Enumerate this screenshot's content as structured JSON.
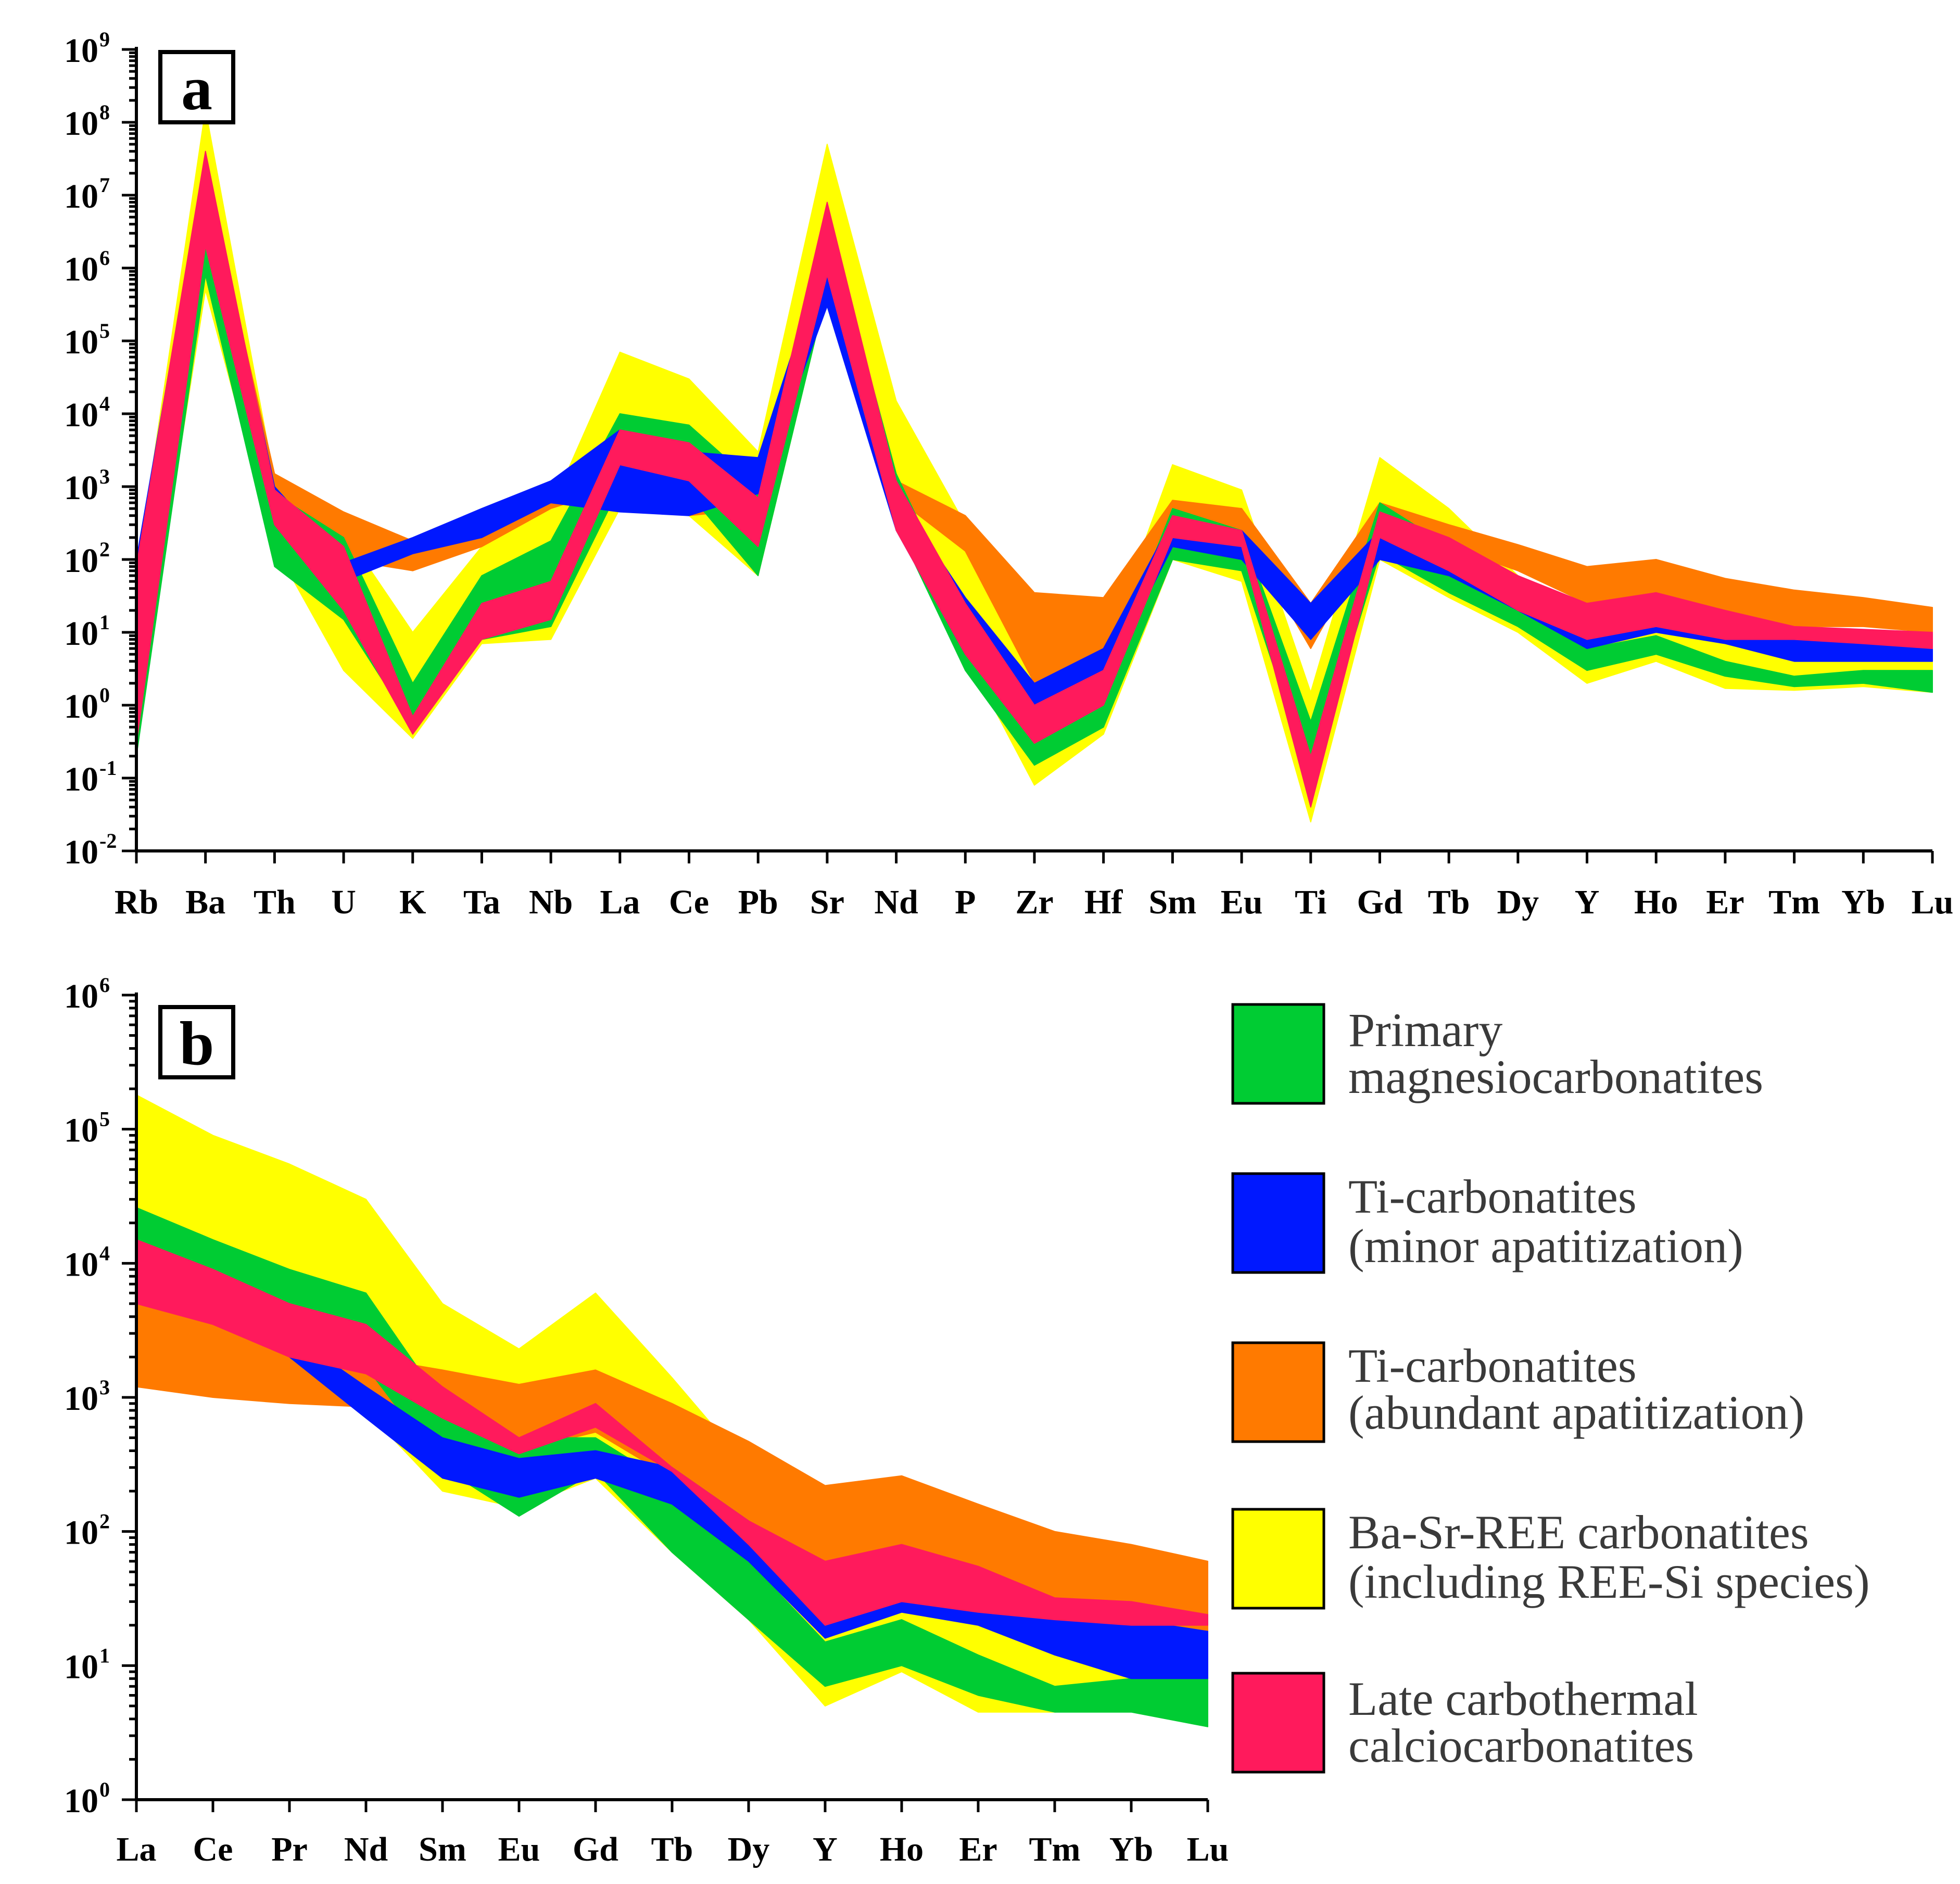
{
  "chart_data": [
    {
      "panel": "a",
      "type": "area",
      "yscale": "log",
      "ylim": [
        0.01,
        1000000000
      ],
      "categories": [
        "Rb",
        "Ba",
        "Th",
        "U",
        "K",
        "Ta",
        "Nb",
        "La",
        "Ce",
        "Pb",
        "Sr",
        "Nd",
        "P",
        "Zr",
        "Hf",
        "Sm",
        "Eu",
        "Ti",
        "Gd",
        "Tb",
        "Dy",
        "Y",
        "Ho",
        "Er",
        "Tm",
        "Yb",
        "Lu"
      ],
      "yticks": [
        {
          "base": "10",
          "exp": "-2",
          "value": 0.01
        },
        {
          "base": "10",
          "exp": "-1",
          "value": 0.1
        },
        {
          "base": "10",
          "exp": "0",
          "value": 1
        },
        {
          "base": "10",
          "exp": "1",
          "value": 10
        },
        {
          "base": "10",
          "exp": "2",
          "value": 100
        },
        {
          "base": "10",
          "exp": "3",
          "value": 1000
        },
        {
          "base": "10",
          "exp": "4",
          "value": 10000
        },
        {
          "base": "10",
          "exp": "5",
          "value": 100000
        },
        {
          "base": "10",
          "exp": "6",
          "value": 1000000
        },
        {
          "base": "10",
          "exp": "7",
          "value": 10000000
        },
        {
          "base": "10",
          "exp": "8",
          "value": 100000000
        },
        {
          "base": "10",
          "exp": "9",
          "value": 1000000000
        }
      ],
      "series": [
        {
          "name": "Ba-Sr-REE carbonatites (including REE-Si species)",
          "color": "#ffff00",
          "lower": [
            0.5,
            500000,
            150,
            3,
            0.35,
            7,
            8,
            500,
            400,
            60,
            500000,
            300,
            5,
            0.08,
            0.4,
            100,
            50,
            0.025,
            100,
            30,
            10,
            2,
            4,
            1.7,
            1.6,
            1.8,
            1.5
          ],
          "upper": [
            60,
            150000000,
            1200,
            250,
            10,
            150,
            500,
            70000,
            30000,
            3000,
            50000000,
            15000,
            300,
            3,
            5,
            2000,
            900,
            1.5,
            2500,
            500,
            60,
            10,
            20,
            8,
            5,
            5,
            4
          ]
        },
        {
          "name": "Ti-carbonatites (abundant apatitization)",
          "color": "#ff7a00",
          "lower": [
            40,
            8000000,
            400,
            100,
            70,
            150,
            500,
            1000,
            400,
            500,
            1000000,
            700,
            130,
            2,
            5,
            300,
            250,
            6,
            300,
            150,
            70,
            25,
            35,
            20,
            12,
            12,
            10
          ],
          "upper": [
            80,
            20000000,
            1500,
            450,
            180,
            200,
            900,
            4000,
            2000,
            1200,
            3000000,
            1200,
            400,
            35,
            30,
            650,
            500,
            25,
            600,
            300,
            160,
            80,
            100,
            55,
            38,
            30,
            22
          ]
        },
        {
          "name": "Primary magnesiocarbonatites",
          "color": "#00cc33",
          "lower": [
            0.2,
            800000,
            80,
            15,
            0.5,
            8,
            12,
            1000,
            800,
            60,
            500000,
            300,
            3,
            0.15,
            0.5,
            100,
            70,
            0.1,
            120,
            35,
            12,
            3,
            5,
            2.5,
            1.8,
            2,
            1.5
          ],
          "upper": [
            60,
            30000000,
            800,
            200,
            2,
            60,
            180,
            10000,
            7000,
            1000,
            5000000,
            1500,
            15,
            0.6,
            2,
            500,
            250,
            0.6,
            600,
            150,
            30,
            6,
            9,
            4,
            2.5,
            3,
            3
          ]
        },
        {
          "name": "Ti-carbonatites (minor apatitization)",
          "color": "#0018ff",
          "lower": [
            40,
            5000000,
            400,
            50,
            120,
            200,
            600,
            450,
            400,
            800,
            300000,
            250,
            5,
            0.8,
            2,
            150,
            100,
            8,
            100,
            60,
            20,
            6,
            10,
            7,
            4,
            4,
            4
          ]
        },
        {
          "name": "Ti-carbonatites (minor apatitization) upper",
          "color": "#0018ff",
          "upper": [
            100,
            30000000,
            1000,
            90,
            200,
            500,
            1200,
            6000,
            3000,
            2500,
            2000000,
            800,
            30,
            2,
            6,
            350,
            250,
            25,
            250,
            140,
            60,
            18,
            25,
            14,
            10,
            9,
            8
          ]
        },
        {
          "name": "Late carbothermal calciocarbonatites",
          "color": "#ff1a5c",
          "lower": [
            0.3,
            2000000,
            300,
            20,
            0.4,
            8,
            15,
            2000,
            1200,
            150,
            800000,
            250,
            5,
            0.3,
            1,
            200,
            150,
            0.04,
            200,
            70,
            20,
            8,
            12,
            8,
            8,
            7,
            6
          ],
          "upper": [
            80,
            40000000,
            900,
            150,
            0.7,
            25,
            50,
            6000,
            4000,
            700,
            8000000,
            1200,
            25,
            1,
            3,
            400,
            250,
            0.2,
            450,
            200,
            60,
            25,
            35,
            20,
            12,
            11,
            10
          ]
        }
      ]
    },
    {
      "panel": "b",
      "type": "area",
      "yscale": "log",
      "ylim": [
        1,
        1000000
      ],
      "categories": [
        "La",
        "Ce",
        "Pr",
        "Nd",
        "Sm",
        "Eu",
        "Gd",
        "Tb",
        "Dy",
        "Y",
        "Ho",
        "Er",
        "Tm",
        "Yb",
        "Lu"
      ],
      "yticks": [
        {
          "base": "10",
          "exp": "0",
          "value": 1
        },
        {
          "base": "10",
          "exp": "1",
          "value": 10
        },
        {
          "base": "10",
          "exp": "2",
          "value": 100
        },
        {
          "base": "10",
          "exp": "3",
          "value": 1000
        },
        {
          "base": "10",
          "exp": "4",
          "value": 10000
        },
        {
          "base": "10",
          "exp": "5",
          "value": 100000
        },
        {
          "base": "10",
          "exp": "6",
          "value": 1000000
        }
      ],
      "series": [
        {
          "name": "Ba-Sr-REE carbonatites (including REE-Si species)",
          "color": "#ffff00",
          "lower": [
            3000,
            2500,
            1500,
            800,
            200,
            150,
            250,
            70,
            22,
            5,
            9,
            4.5,
            4.5,
            5,
            3.5
          ],
          "upper": [
            180000,
            90000,
            55000,
            30000,
            5000,
            2300,
            6000,
            1400,
            300,
            50,
            80,
            40,
            25,
            15,
            12
          ]
        },
        {
          "name": "Ti-carbonatites (abundant apatitization)",
          "color": "#ff7a00",
          "lower": [
            1200,
            1000,
            900,
            850,
            700,
            400,
            550,
            250,
            100,
            35,
            50,
            30,
            20,
            20,
            18
          ],
          "upper": [
            7000,
            4500,
            3000,
            2000,
            1600,
            1250,
            1600,
            900,
            470,
            220,
            260,
            160,
            100,
            80,
            60
          ]
        },
        {
          "name": "Primary magnesiocarbonatites",
          "color": "#00cc33",
          "lower": [
            15000,
            8000,
            3500,
            1700,
            300,
            130,
            280,
            70,
            22,
            7,
            10,
            6,
            4.5,
            4.5,
            3.5
          ],
          "upper": [
            26000,
            15000,
            9000,
            6000,
            900,
            500,
            500,
            220,
            60,
            15,
            22,
            12,
            7,
            8,
            8
          ]
        },
        {
          "name": "Ti-carbonatites (minor apatitization)",
          "color": "#0018ff",
          "lower": [
            12000,
            5500,
            2000,
            700,
            250,
            180,
            250,
            160,
            60,
            16,
            25,
            20,
            12,
            8,
            8
          ],
          "upper": [
            15000,
            6500,
            3000,
            1200,
            500,
            350,
            400,
            300,
            120,
            40,
            40,
            40,
            30,
            22,
            18
          ]
        },
        {
          "name": "Late carbothermal calciocarbonatites",
          "color": "#ff1a5c",
          "lower": [
            5000,
            3500,
            2000,
            1500,
            700,
            380,
            600,
            280,
            80,
            20,
            30,
            25,
            22,
            20,
            20
          ],
          "upper": [
            15000,
            9000,
            5000,
            3500,
            1200,
            500,
            900,
            300,
            120,
            60,
            80,
            55,
            32,
            30,
            24
          ]
        }
      ]
    }
  ],
  "panel_a": {
    "letter": "a"
  },
  "panel_b": {
    "letter": "b"
  },
  "legend": [
    {
      "line1": "Primary",
      "line2": "magnesiocarbonatites",
      "color": "#00cc33"
    },
    {
      "line1": "Ti-carbonatites",
      "line2": "(minor apatitization)",
      "color": "#0018ff"
    },
    {
      "line1": "Ti-carbonatites",
      "line2": "(abundant apatitization)",
      "color": "#ff7a00"
    },
    {
      "line1": "Ba-Sr-REE carbonatites",
      "line2": "(including REE-Si species)",
      "color": "#ffff00"
    },
    {
      "line1": "Late carbothermal",
      "line2": "calciocarbonatites",
      "color": "#ff1a5c"
    }
  ]
}
